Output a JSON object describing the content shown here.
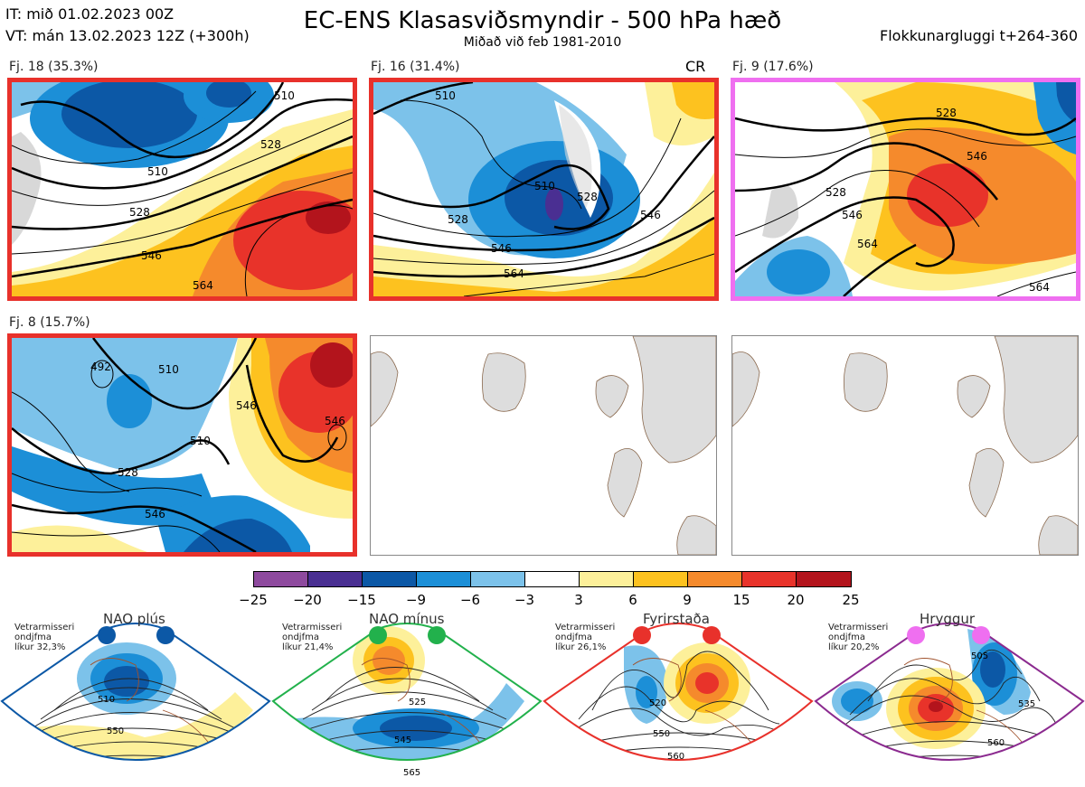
{
  "header": {
    "it_line": "IT: mið 01.02.2023 00Z",
    "vt_line": "VT: mán 13.02.2023 12Z  (+300h)",
    "title": "EC-ENS Klasasviðsmyndir - 500 hPa hæð",
    "subtitle": "Miðað við feb 1981-2010",
    "window": "Flokkunargluggi t+264-360"
  },
  "panels": [
    {
      "label": "Fj. 18 (35.3%)",
      "border": "#e8312b",
      "contours": [
        "510",
        "528",
        "546",
        "564",
        "528",
        "510"
      ]
    },
    {
      "label": "Fj. 16 (31.4%)",
      "border": "#e8312b",
      "tag": "CR",
      "contours": [
        "510",
        "510",
        "528",
        "546",
        "564",
        "528",
        "546"
      ]
    },
    {
      "label": "Fj. 9 (17.6%)",
      "border": "#ef6ff0",
      "contours": [
        "528",
        "546",
        "528",
        "546",
        "564",
        "564"
      ]
    },
    {
      "label": "Fj. 8 (15.7%)",
      "border": "#e8312b",
      "contours": [
        "492",
        "510",
        "510",
        "528",
        "546",
        "546",
        "546"
      ]
    }
  ],
  "colorbar": {
    "ticks": [
      "−25",
      "−20",
      "−15",
      "−9",
      "−6",
      "−3",
      "3",
      "6",
      "9",
      "15",
      "20",
      "25"
    ],
    "colors": [
      "#8e4a9e",
      "#4a2f92",
      "#0c58a6",
      "#1c8fd7",
      "#7cc2ea",
      "#ffffff",
      "#fdf09a",
      "#fdc21f",
      "#f58a2c",
      "#e8332a",
      "#b3141c"
    ]
  },
  "regimes": [
    {
      "title": "NAO plús",
      "caption": [
        "Vetrarmisseri",
        "ondjfma",
        "líkur 32,3%"
      ],
      "color": "#0c58a6",
      "contours": [
        "510",
        "550"
      ]
    },
    {
      "title": "NAO mínus",
      "caption": [
        "Vetrarmisseri",
        "ondjfma",
        "líkur 21,4%"
      ],
      "color": "#22b14c",
      "contours": [
        "525",
        "545",
        "565"
      ]
    },
    {
      "title": "Fyrirstaða",
      "caption": [
        "Vetrarmisseri",
        "ondjfma",
        "líkur 26,1%"
      ],
      "color": "#e8312b",
      "contours": [
        "520",
        "550",
        "560"
      ]
    },
    {
      "title": "Hryggur",
      "caption": [
        "Vetrarmisseri",
        "ondjfma",
        "líkur 20,2%"
      ],
      "color": "#ef6ff0",
      "contours": [
        "505",
        "535",
        "560"
      ]
    }
  ]
}
